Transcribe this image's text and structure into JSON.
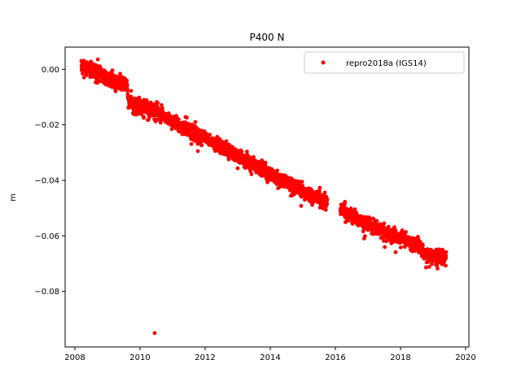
{
  "chart_data": {
    "type": "scatter",
    "title": "P400 N",
    "xlabel": "",
    "ylabel": "m",
    "xlim": [
      2007.7,
      2020.1
    ],
    "ylim": [
      -0.1,
      0.008
    ],
    "x_ticks": [
      "2008",
      "2010",
      "2012",
      "2014",
      "2016",
      "2018",
      "2020"
    ],
    "y_ticks": [
      "0.00",
      "−0.02",
      "−0.04",
      "−0.06",
      "−0.08"
    ],
    "grid": false,
    "legend_position": "top-right",
    "series": [
      {
        "name": "repro2018a (IGS14)",
        "color": "#ff0000",
        "trend_points": [
          {
            "x": 2008.2,
            "y": 0.001
          },
          {
            "x": 2009.0,
            "y": -0.003
          },
          {
            "x": 2009.6,
            "y": -0.006
          },
          {
            "x": 2009.65,
            "y": -0.012
          },
          {
            "x": 2010.5,
            "y": -0.015
          },
          {
            "x": 2011.0,
            "y": -0.019
          },
          {
            "x": 2012.0,
            "y": -0.025
          },
          {
            "x": 2013.0,
            "y": -0.031
          },
          {
            "x": 2014.0,
            "y": -0.038
          },
          {
            "x": 2015.0,
            "y": -0.044
          },
          {
            "x": 2015.7,
            "y": -0.048
          },
          {
            "x": 2016.2,
            "y": -0.051
          },
          {
            "x": 2017.0,
            "y": -0.056
          },
          {
            "x": 2018.0,
            "y": -0.061
          },
          {
            "x": 2018.5,
            "y": -0.063
          },
          {
            "x": 2018.8,
            "y": -0.067
          },
          {
            "x": 2019.4,
            "y": -0.068
          }
        ],
        "gaps": [
          [
            2015.75,
            2016.15
          ]
        ],
        "outliers": [
          {
            "x": 2010.45,
            "y": -0.095
          }
        ]
      }
    ]
  }
}
